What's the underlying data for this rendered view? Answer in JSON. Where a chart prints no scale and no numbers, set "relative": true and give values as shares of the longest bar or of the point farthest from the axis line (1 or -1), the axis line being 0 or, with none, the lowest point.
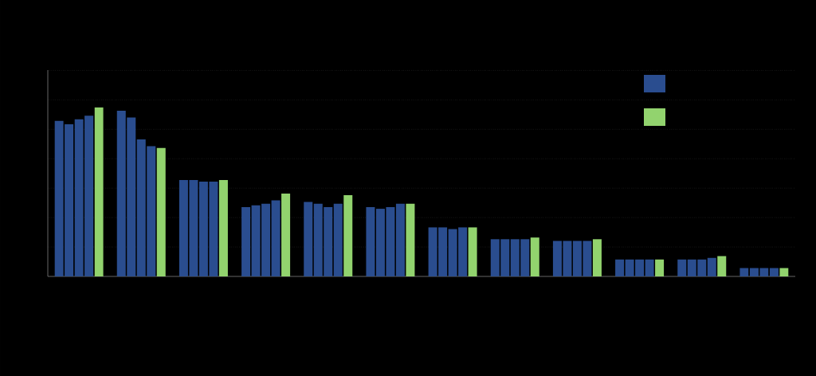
{
  "chart_data": {
    "type": "bar",
    "relative": true,
    "grid": "y",
    "categories": [
      null,
      null,
      null,
      null,
      null,
      null,
      null,
      null,
      null,
      null,
      null,
      null
    ],
    "series": [
      {
        "color": "#2a4d8f",
        "values": [
          0.92,
          0.98,
          0.57,
          0.41,
          0.44,
          0.41,
          0.29,
          0.22,
          0.21,
          0.1,
          0.1,
          0.05
        ]
      },
      {
        "color": "#2a4d8f",
        "values": [
          0.9,
          0.94,
          0.57,
          0.42,
          0.43,
          0.4,
          0.29,
          0.22,
          0.21,
          0.1,
          0.1,
          0.05
        ]
      },
      {
        "color": "#2a4d8f",
        "values": [
          0.93,
          0.81,
          0.56,
          0.43,
          0.41,
          0.41,
          0.28,
          0.22,
          0.21,
          0.1,
          0.1,
          0.05
        ]
      },
      {
        "color": "#2a4d8f",
        "values": [
          0.95,
          0.77,
          0.56,
          0.45,
          0.43,
          0.43,
          0.29,
          0.22,
          0.21,
          0.1,
          0.11,
          0.05
        ]
      },
      {
        "color": "#92d36e",
        "values": [
          1,
          0.76,
          0.57,
          0.49,
          0.48,
          0.43,
          0.29,
          0.23,
          0.22,
          0.1,
          0.12,
          0.05
        ]
      }
    ]
  }
}
